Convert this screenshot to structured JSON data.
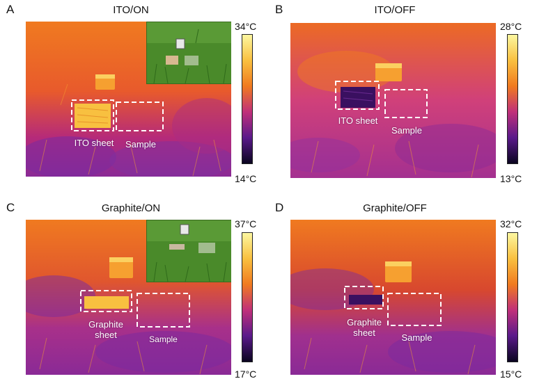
{
  "panels": [
    {
      "letter": "A",
      "title": "ITO/ON",
      "colorbar": {
        "max": "34°C",
        "min": "14°C"
      },
      "labels": {
        "left": "ITO sheet",
        "right": "Sample"
      },
      "has_inset": true,
      "left_box": "hot"
    },
    {
      "letter": "B",
      "title": "ITO/OFF",
      "colorbar": {
        "max": "28°C",
        "min": "13°C"
      },
      "labels": {
        "left": "ITO sheet",
        "right": "Sample"
      },
      "has_inset": false,
      "left_box": "cold"
    },
    {
      "letter": "C",
      "title": "Graphite/ON",
      "colorbar": {
        "max": "37°C",
        "min": "17°C"
      },
      "labels": {
        "left": "Graphite sheet",
        "right": "Sample"
      },
      "has_inset": true,
      "left_box": "hot"
    },
    {
      "letter": "D",
      "title": "Graphite/OFF",
      "colorbar": {
        "max": "32°C",
        "min": "15°C"
      },
      "labels": {
        "left": "Graphite sheet",
        "right": "Sample"
      },
      "has_inset": false,
      "left_box": "cold"
    }
  ],
  "colors": {
    "inferno_low": "#0a0520",
    "inferno_mid_low": "#5a1a8a",
    "inferno_mid": "#c0307a",
    "inferno_mid_high": "#f07a20",
    "inferno_high": "#fcf7a0",
    "grass": "#4a8a2a",
    "dashed_box": "#ffffff"
  }
}
